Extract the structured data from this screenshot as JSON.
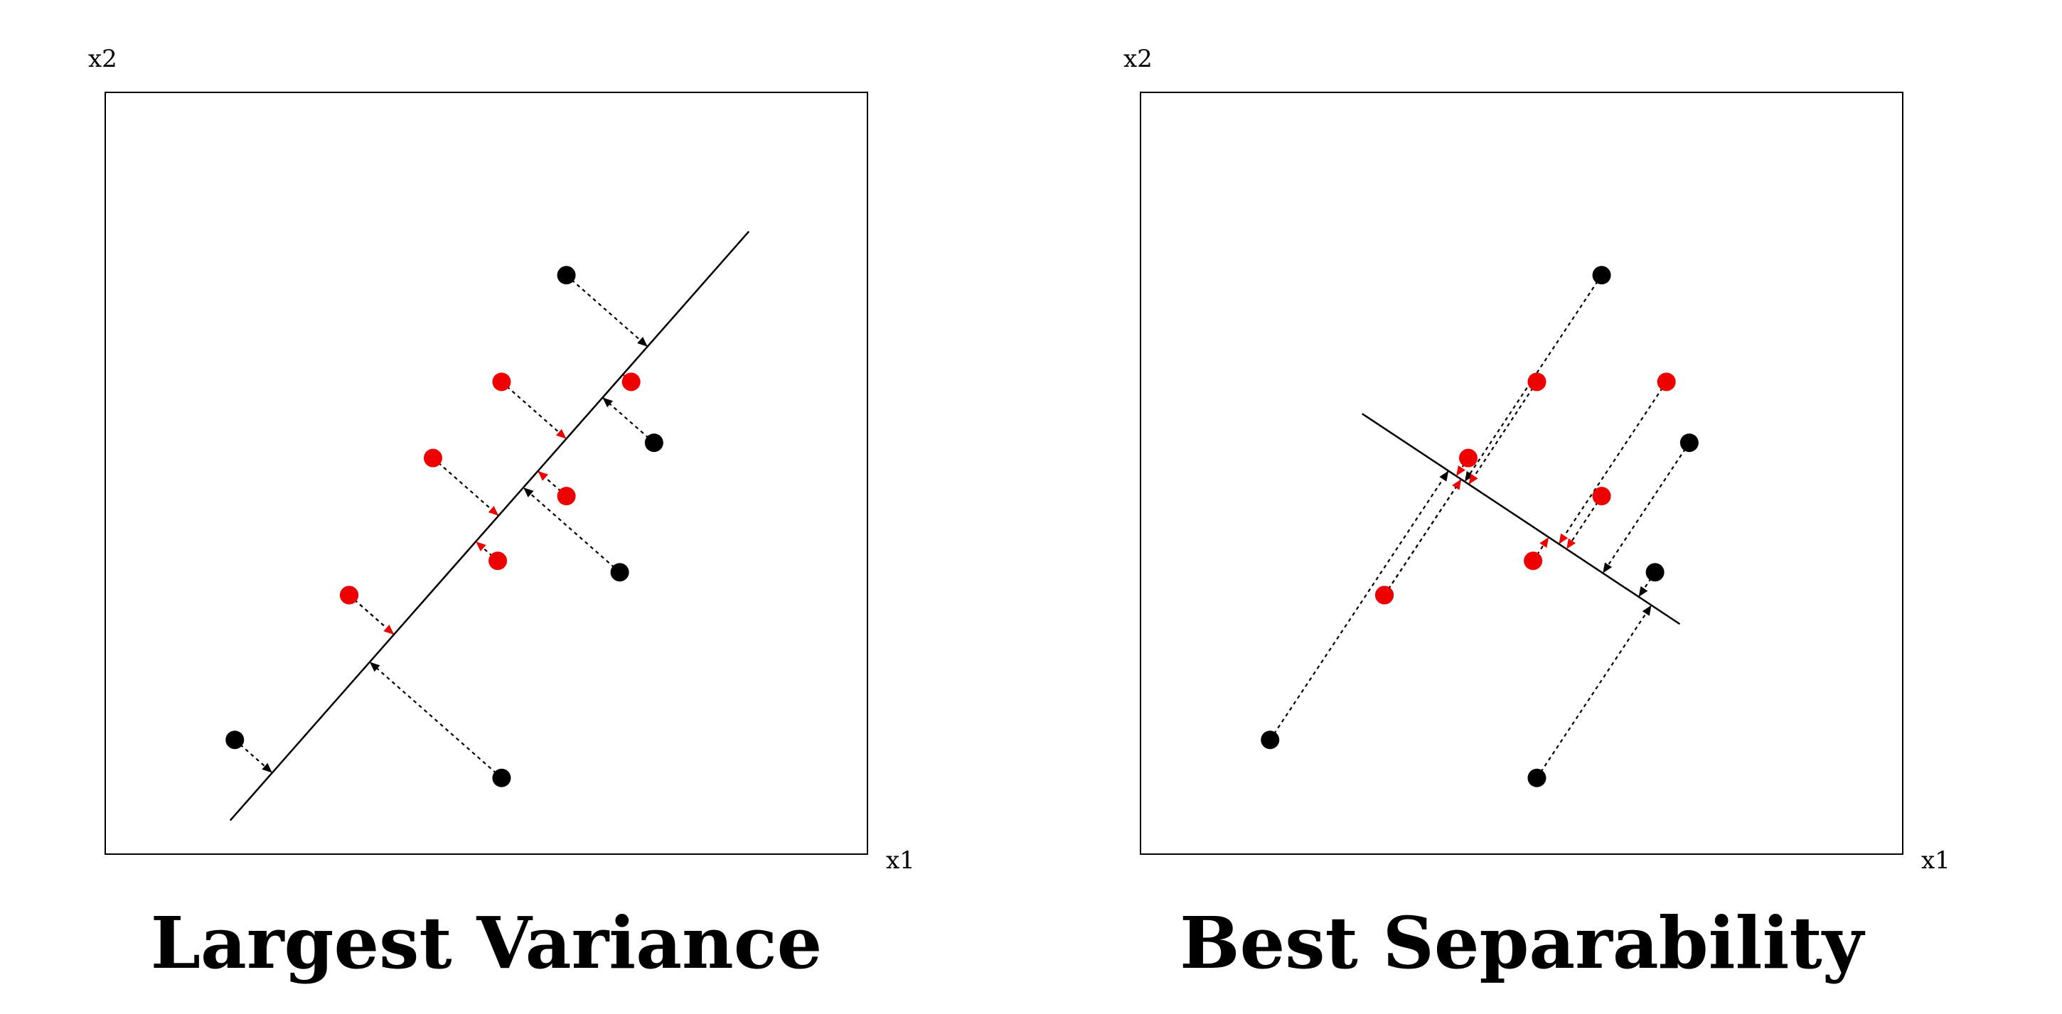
{
  "panels": [
    {
      "title": "Largest Variance",
      "xlabel": "x1",
      "ylabel": "x2",
      "points": [
        {
          "x": 1.7,
          "y": 1.5,
          "class": "black"
        },
        {
          "x": 3.2,
          "y": 3.4,
          "class": "black"
        },
        {
          "x": 5.2,
          "y": 1.0,
          "class": "black"
        },
        {
          "x": 6.05,
          "y": 7.6,
          "class": "black"
        },
        {
          "x": 6.75,
          "y": 3.7,
          "class": "black"
        },
        {
          "x": 7.2,
          "y": 5.4,
          "class": "black"
        },
        {
          "x": 3.2,
          "y": 3.4,
          "class": "red"
        },
        {
          "x": 4.3,
          "y": 5.2,
          "class": "red"
        },
        {
          "x": 5.15,
          "y": 3.85,
          "class": "red"
        },
        {
          "x": 5.2,
          "y": 6.2,
          "class": "red"
        },
        {
          "x": 6.05,
          "y": 4.7,
          "class": "red"
        },
        {
          "x": 6.9,
          "y": 6.2,
          "class": "red"
        }
      ],
      "direction": [
        0.66,
        0.75
      ],
      "line_extent": [
        -5.2,
        5.1
      ]
    },
    {
      "title": "Best Separability",
      "xlabel": "x1",
      "ylabel": "x2",
      "points": [
        {
          "x": 1.7,
          "y": 1.5,
          "class": "black"
        },
        {
          "x": 3.2,
          "y": 3.4,
          "class": "black"
        },
        {
          "x": 5.2,
          "y": 1.0,
          "class": "black"
        },
        {
          "x": 6.05,
          "y": 7.6,
          "class": "black"
        },
        {
          "x": 6.75,
          "y": 3.7,
          "class": "black"
        },
        {
          "x": 7.2,
          "y": 5.4,
          "class": "black"
        },
        {
          "x": 3.2,
          "y": 3.4,
          "class": "red"
        },
        {
          "x": 4.3,
          "y": 5.2,
          "class": "red"
        },
        {
          "x": 5.15,
          "y": 3.85,
          "class": "red"
        },
        {
          "x": 5.2,
          "y": 6.2,
          "class": "red"
        },
        {
          "x": 6.9,
          "y": 6.2,
          "class": "red"
        },
        {
          "x": 6.05,
          "y": 4.7,
          "class": "red"
        }
      ],
      "direction": [
        0.83,
        -0.55
      ],
      "line_extent": [
        -2.6,
        2.4
      ]
    }
  ],
  "colors": {
    "class_black": "#000000",
    "class_red": "#ee0000",
    "axes": "#000000"
  }
}
